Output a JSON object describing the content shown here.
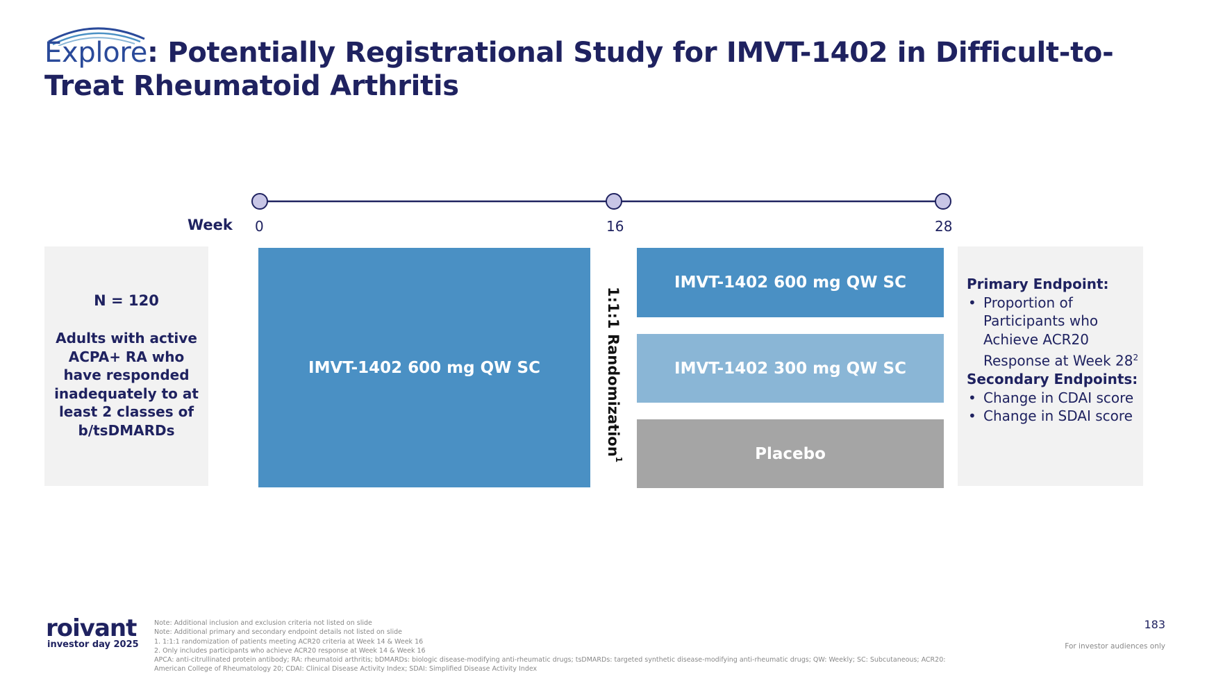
{
  "colors": {
    "navy": "#1f2260",
    "arm_dark_blue": "#4a90c4",
    "arm_light_blue": "#8ab6d6",
    "arm_gray": "#a5a5a5",
    "box_gray": "#f2f2f2",
    "node_fill": "#c8c6e6"
  },
  "header": {
    "brand_word": "Explore",
    "title_rest": ": Potentially Registrational Study for IMVT-1402 in Difficult-to-Treat Rheumatoid Arthritis"
  },
  "timeline": {
    "label": "Week",
    "ticks": [
      "0",
      "16",
      "28"
    ]
  },
  "population": {
    "n": "N = 120",
    "description": "Adults with active ACPA+ RA who have responded inadequately to at least 2 classes of b/tsDMARDs"
  },
  "arms": {
    "initial": "IMVT-1402 600 mg QW SC",
    "randomized": [
      "IMVT-1402 600 mg QW SC",
      "IMVT-1402 300 mg QW SC",
      "Placebo"
    ]
  },
  "randomization": {
    "label": "1:1:1 Randomization",
    "footnote_mark": "1"
  },
  "endpoints": {
    "primary_heading": "Primary Endpoint:",
    "primary_item": "Proportion of Participants who Achieve ACR20 Response at Week 28",
    "primary_footnote_mark": "2",
    "secondary_heading": "Secondary Endpoints:",
    "secondary_items": [
      "Change in CDAI score",
      "Change in SDAI score"
    ]
  },
  "footer": {
    "logo": "roivant",
    "logo_sub": "investor day 2025",
    "notes": [
      "Note: Additional inclusion and exclusion criteria not listed on slide",
      "Note: Additional primary and secondary endpoint details not listed on slide",
      "1. 1:1:1 randomization of patients meeting ACR20 criteria at Week 14 & Week 16",
      "2. Only includes participants who achieve ACR20 response at Week 14 & Week 16",
      "APCA: anti-citrullinated protein antibody; RA: rheumatoid arthritis; bDMARDs: biologic disease-modifying anti-rheumatic drugs; tsDMARDs: targeted synthetic disease-modifying anti-rheumatic drugs; QW: Weekly; SC: Subcutaneous; ACR20:",
      "American College of Rheumatology 20; CDAI: Clinical Disease Activity Index; SDAI: Simplified Disease Activity Index"
    ],
    "page_number": "183",
    "audience": "For investor audiences only"
  }
}
